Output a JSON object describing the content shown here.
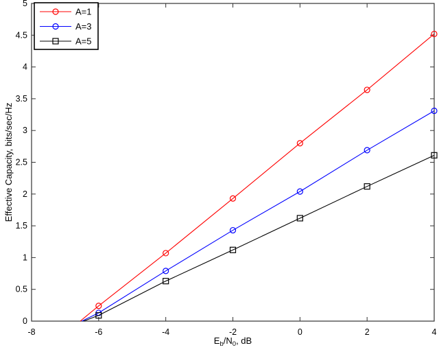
{
  "figure": {
    "background": "#ffffff"
  },
  "chart_data": {
    "type": "line",
    "title": "",
    "xlabel_plain": "Eb/N0, dB",
    "xlabel_parts": [
      {
        "text": "E",
        "sub": false
      },
      {
        "text": "b",
        "sub": true
      },
      {
        "text": "/N",
        "sub": false
      },
      {
        "text": "0",
        "sub": true
      },
      {
        "text": ", dB",
        "sub": false
      }
    ],
    "ylabel": "Effective Capacity, bits/sec/Hz",
    "xlim": [
      -8,
      4
    ],
    "ylim": [
      0,
      5
    ],
    "x_ticks": [
      -8,
      -6,
      -4,
      -2,
      0,
      2,
      4
    ],
    "x_tick_labels": [
      "-8",
      "-6",
      "-4",
      "-2",
      "0",
      "2",
      "4"
    ],
    "y_ticks": [
      0,
      0.5,
      1,
      1.5,
      2,
      2.5,
      3,
      3.5,
      4,
      4.5,
      5
    ],
    "y_tick_labels": [
      "0",
      "0.5",
      "1",
      "1.5",
      "2",
      "2.5",
      "3",
      "3.5",
      "4",
      "4.5",
      "5"
    ],
    "grid": false,
    "legend_position": "upper-left",
    "axis_color": "#333333",
    "tick_length": 6,
    "series": [
      {
        "label": "A=1",
        "color": "#ff0000",
        "marker": "circle",
        "x": [
          -6.55,
          -6,
          -4,
          -2,
          0,
          2,
          4
        ],
        "y": [
          0,
          0.24,
          1.07,
          1.93,
          2.8,
          3.64,
          4.52
        ],
        "marker_from_index": 1
      },
      {
        "label": "A=3",
        "color": "#0000ff",
        "marker": "circle",
        "x": [
          -6.5,
          -6,
          -4,
          -2,
          0,
          2,
          4
        ],
        "y": [
          0,
          0.13,
          0.79,
          1.43,
          2.04,
          2.69,
          3.31
        ],
        "marker_from_index": 1
      },
      {
        "label": "A=5",
        "color": "#000000",
        "marker": "square",
        "x": [
          -6.45,
          -6,
          -4,
          -2,
          0,
          2,
          4
        ],
        "y": [
          0,
          0.09,
          0.63,
          1.12,
          1.62,
          2.12,
          2.61
        ],
        "marker_from_index": 1
      }
    ]
  }
}
